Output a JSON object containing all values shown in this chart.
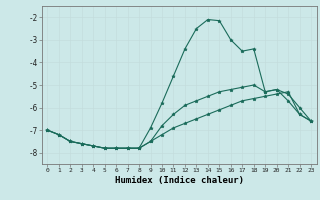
{
  "title": "",
  "xlabel": "Humidex (Indice chaleur)",
  "bg_color": "#cce8e8",
  "grid_color": "#c4dddd",
  "line_color": "#1a6b5a",
  "xlim": [
    -0.5,
    23.5
  ],
  "ylim": [
    -8.5,
    -1.5
  ],
  "yticks": [
    -8,
    -7,
    -6,
    -5,
    -4,
    -3,
    -2
  ],
  "xticks": [
    0,
    1,
    2,
    3,
    4,
    5,
    6,
    7,
    8,
    9,
    10,
    11,
    12,
    13,
    14,
    15,
    16,
    17,
    18,
    19,
    20,
    21,
    22,
    23
  ],
  "line1_x": [
    0,
    1,
    2,
    3,
    4,
    5,
    6,
    7,
    8,
    9,
    10,
    11,
    12,
    13,
    14,
    15,
    16,
    17,
    18,
    19,
    20,
    21,
    22,
    23
  ],
  "line1_y": [
    -7.0,
    -7.2,
    -7.5,
    -7.6,
    -7.7,
    -7.8,
    -7.8,
    -7.8,
    -7.8,
    -6.9,
    -5.8,
    -4.6,
    -3.4,
    -2.5,
    -2.1,
    -2.15,
    -3.0,
    -3.5,
    -3.4,
    -5.3,
    -5.2,
    -5.4,
    -6.0,
    -6.6
  ],
  "line2_x": [
    0,
    1,
    2,
    3,
    4,
    5,
    6,
    7,
    8,
    9,
    10,
    11,
    12,
    13,
    14,
    15,
    16,
    17,
    18,
    19,
    20,
    21,
    22,
    23
  ],
  "line2_y": [
    -7.0,
    -7.2,
    -7.5,
    -7.6,
    -7.7,
    -7.8,
    -7.8,
    -7.8,
    -7.8,
    -7.5,
    -6.8,
    -6.3,
    -5.9,
    -5.7,
    -5.5,
    -5.3,
    -5.2,
    -5.1,
    -5.0,
    -5.3,
    -5.2,
    -5.7,
    -6.3,
    -6.6
  ],
  "line3_x": [
    0,
    1,
    2,
    3,
    4,
    5,
    6,
    7,
    8,
    9,
    10,
    11,
    12,
    13,
    14,
    15,
    16,
    17,
    18,
    19,
    20,
    21,
    22,
    23
  ],
  "line3_y": [
    -7.0,
    -7.2,
    -7.5,
    -7.6,
    -7.7,
    -7.8,
    -7.8,
    -7.8,
    -7.8,
    -7.5,
    -7.2,
    -6.9,
    -6.7,
    -6.5,
    -6.3,
    -6.1,
    -5.9,
    -5.7,
    -5.6,
    -5.5,
    -5.4,
    -5.3,
    -6.3,
    -6.6
  ]
}
